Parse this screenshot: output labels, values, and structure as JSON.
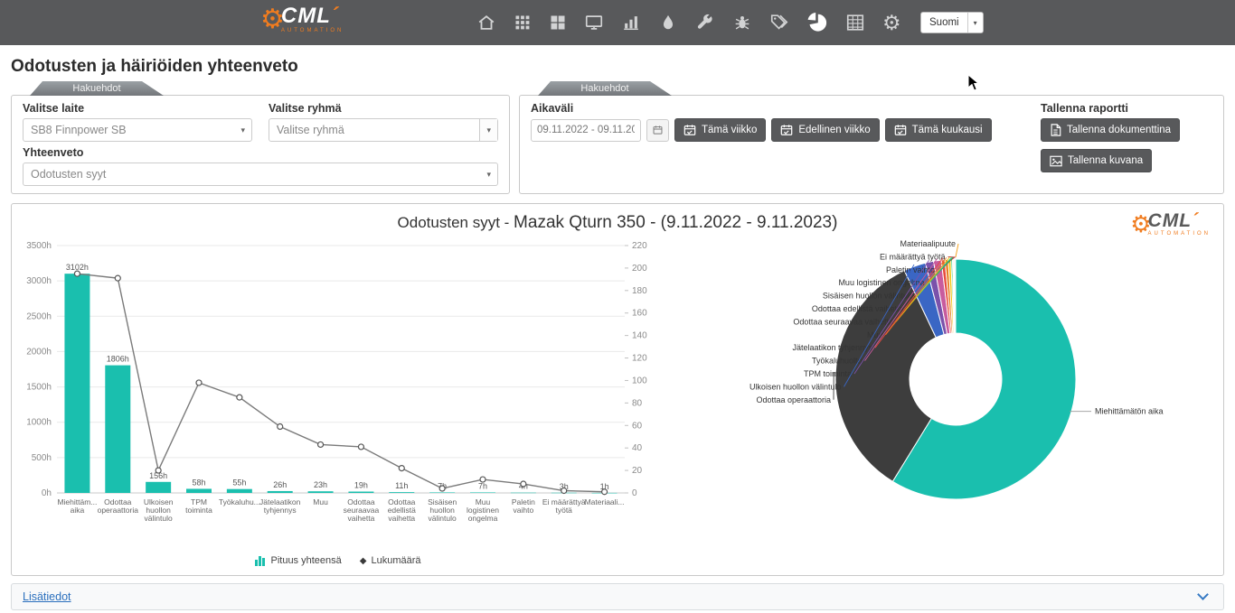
{
  "colors": {
    "navbar": "#58595b",
    "accent_teal": "#1abfae",
    "logo_orange": "#f07c1f",
    "link_blue": "#2a6fbd",
    "button_dark": "#58595b"
  },
  "navbar": {
    "logo": {
      "text": "CML",
      "accent": "´",
      "sub": "AUTOMATION"
    },
    "icons": [
      "home-icon",
      "apps-grid-icon",
      "modules-icon",
      "monitor-icon",
      "bar-chart-icon",
      "droplet-icon",
      "wrench-icon",
      "bug-icon",
      "tags-icon",
      "pie-chart-icon",
      "spreadsheet-icon",
      "settings-gear-icon"
    ],
    "active_icon": "pie-chart-icon",
    "language": {
      "selected": "Suomi"
    }
  },
  "page": {
    "title": "Odotusten ja häiriöiden yhteenveto"
  },
  "filters": {
    "tab_label": "Hakuehdot",
    "device": {
      "label": "Valitse laite",
      "value": "SB8 Finnpower SB"
    },
    "group": {
      "label": "Valitse ryhmä",
      "value": "Valitse ryhmä"
    },
    "summary": {
      "label": "Yhteenveto",
      "value": "Odotusten syyt"
    }
  },
  "timefilter": {
    "tab_label": "Hakuehdot",
    "range_label": "Aikaväli",
    "range_value": "09.11.2022 - 09.11.2023",
    "quick_buttons": [
      "Tämä viikko",
      "Edellinen viikko",
      "Tämä kuukausi"
    ],
    "save": {
      "label": "Tallenna raportti",
      "buttons": [
        "Tallenna dokumenttina",
        "Tallenna kuvana"
      ]
    }
  },
  "report": {
    "title_prefix": "Odotusten syyt - ",
    "title_main": "Mazak Qturn 350 - (9.11.2022 - 9.11.2023)"
  },
  "footer": {
    "link": "Lisätiedot"
  },
  "chart_data": [
    {
      "type": "bar+line",
      "title": "Odotusten syyt - Mazak Qturn 350 - (9.11.2022 - 9.11.2023)",
      "categories": [
        "Miehittämätön aika",
        "Odottaa operaattoria",
        "Ulkoisen huollon välintulo",
        "TPM toiminta",
        "Työkaluhuolto",
        "Jätelaatikon tyhjennys",
        "Muu",
        "Odottaa seuraavaa vaihetta",
        "Odottaa edellistä vaihetta",
        "Sisäisen huollon välintulo",
        "Muu logistinen ongelma",
        "Paletin vaihto",
        "Ei määrättyä työtä",
        "Materiaalipuute"
      ],
      "xlabels": [
        [
          "Miehittäm...",
          "aika"
        ],
        [
          "Odottaa",
          "operaattoria"
        ],
        [
          "Ulkoisen",
          "huollon",
          "välintulo"
        ],
        [
          "TPM",
          "toiminta"
        ],
        [
          "Työkaluhu..."
        ],
        [
          "Jätelaatikon",
          "tyhjennys"
        ],
        [
          "Muu"
        ],
        [
          "Odottaa",
          "seuraavaa",
          "vaihetta"
        ],
        [
          "Odottaa",
          "edellistä",
          "vaihetta"
        ],
        [
          "Sisäisen",
          "huollon",
          "välintulo"
        ],
        [
          "Muu",
          "logistinen",
          "ongelma"
        ],
        [
          "Paletin",
          "vaihto"
        ],
        [
          "Ei määrättyä",
          "työtä"
        ],
        [
          "Materiaali..."
        ]
      ],
      "series": [
        {
          "name": "Pituus yhteensä",
          "type": "bar",
          "axis": "left",
          "unit": "h",
          "color": "#1abfae",
          "values": [
            3102,
            1806,
            156,
            58,
            55,
            26,
            23,
            19,
            11,
            7,
            7,
            4,
            3,
            1
          ],
          "labels": [
            "3102h",
            "1806h",
            "156h",
            "58h",
            "55h",
            "26h",
            "23h",
            "19h",
            "11h",
            "7h",
            "7h",
            "4h",
            "3h",
            "1h"
          ]
        },
        {
          "name": "Lukumäärä",
          "type": "line",
          "axis": "right",
          "color": "#7a7a7a",
          "values": [
            195,
            191,
            20,
            98,
            85,
            59,
            43,
            41,
            22,
            4,
            12,
            8,
            2,
            1
          ]
        }
      ],
      "left_axis": {
        "ticks": [
          "0h",
          "500h",
          "1000h",
          "1500h",
          "2000h",
          "2500h",
          "3000h",
          "3500h"
        ],
        "max": 3500
      },
      "right_axis": {
        "ticks": [
          0,
          20,
          40,
          60,
          80,
          100,
          120,
          140,
          160,
          180,
          200,
          220
        ],
        "max": 220
      },
      "grid": true,
      "legend_position": "bottom"
    },
    {
      "type": "donut",
      "inner_radius_ratio": 0.38,
      "slices": [
        {
          "label": "Miehittämätön aika",
          "value": 3102,
          "color": "#1abfae"
        },
        {
          "label": "Odottaa operaattoria",
          "value": 1806,
          "color": "#3d3d3d"
        },
        {
          "label": "Ulkoisen huollon välintulo",
          "value": 156,
          "color": "#3a66c4"
        },
        {
          "label": "TPM toiminta",
          "value": 58,
          "color": "#7b52ab"
        },
        {
          "label": "Työkaluhuolto",
          "value": 55,
          "color": "#c85c9e"
        },
        {
          "label": "Jätelaatikon tyhjennys",
          "value": 26,
          "color": "#e74c3c"
        },
        {
          "label": "Muu",
          "value": 23,
          "color": "#e67e22"
        },
        {
          "label": "Odottaa seuraavaa vaihetta",
          "value": 19,
          "color": "#f1c40f"
        },
        {
          "label": "Odottaa edellistä vaihetta",
          "value": 11,
          "color": "#2ecc71"
        },
        {
          "label": "Sisäisen huollon välintulo",
          "value": 7,
          "color": "#16a085"
        },
        {
          "label": "Muu logistinen ongelma",
          "value": 7,
          "color": "#d35400"
        },
        {
          "label": "Paletin vaihto",
          "value": 4,
          "color": "#8e44ad"
        },
        {
          "label": "Ei määrättyä työtä",
          "value": 3,
          "color": "#c0392b"
        },
        {
          "label": "Materiaalipuute",
          "value": 1,
          "color": "#f39c12"
        }
      ]
    }
  ]
}
